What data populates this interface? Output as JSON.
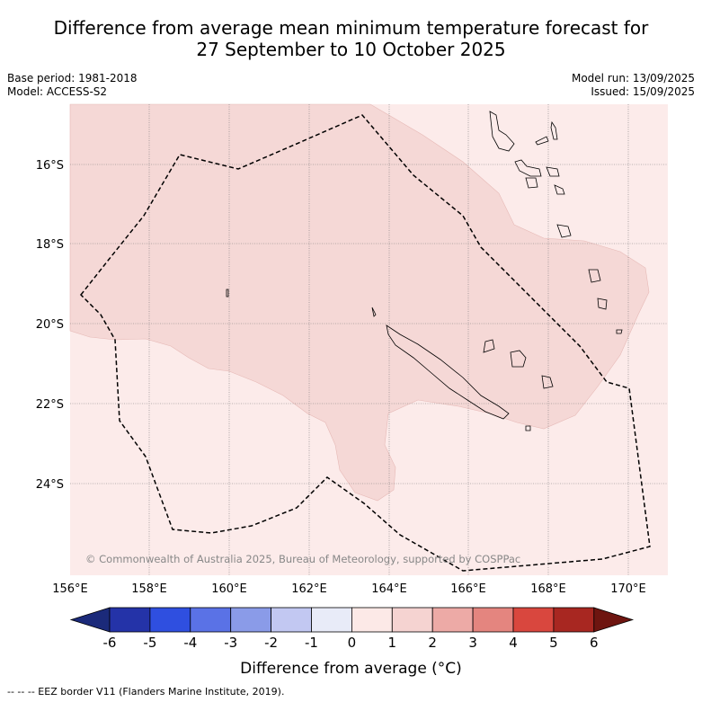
{
  "title_line1": "Difference from average mean minimum temperature forecast for",
  "title_line2": "27 September to 10 October 2025",
  "base_period": "Base period: 1981-2018",
  "model": "Model: ACCESS-S2",
  "model_run": "Model run: 13/09/2025",
  "issued": "Issued: 15/09/2025",
  "copyright": "© Commonwealth of Australia 2025, Bureau of Meteorology, supported by COSPPac",
  "lat_labels": [
    "16°S",
    "18°S",
    "20°S",
    "22°S",
    "24°S"
  ],
  "lon_labels": [
    "156°E",
    "158°E",
    "160°E",
    "162°E",
    "164°E",
    "166°E",
    "168°E",
    "170°E"
  ],
  "colorbar": {
    "ticks": [
      "-6",
      "-5",
      "-4",
      "-3",
      "-2",
      "-1",
      "0",
      "1",
      "2",
      "3",
      "4",
      "5",
      "6"
    ],
    "colors": [
      "#1b2a7a",
      "#2433a8",
      "#2f4fe0",
      "#5a72e6",
      "#8a9be8",
      "#c2c8f2",
      "#e8ebf8",
      "#fce9e7",
      "#f5d3d1",
      "#edaaa6",
      "#e4857f",
      "#d9473e",
      "#a82721",
      "#6e1510"
    ],
    "label": "Difference from average (°C)"
  },
  "footnote": "--  --  -- EEZ border V11 (Flanders Marine Institute, 2019)."
}
